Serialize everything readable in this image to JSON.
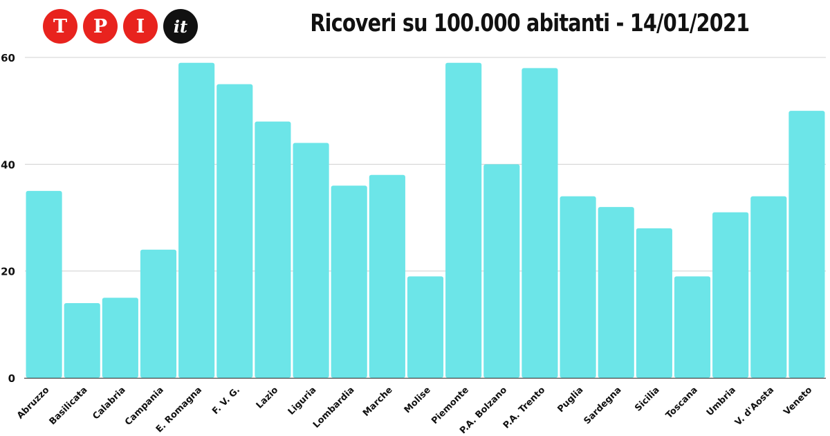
{
  "logo": {
    "letters": [
      "T",
      "P",
      "I"
    ],
    "suffix": "it",
    "letter_color": "#e8231e",
    "suffix_color": "#111111"
  },
  "chart_data": {
    "type": "bar",
    "title": "Ricoveri su 100.000 abitanti - 14/01/2021",
    "xlabel": "",
    "ylabel": "",
    "categories": [
      "Abruzzo",
      "Basilicata",
      "Calabria",
      "Campania",
      "E. Romagna",
      "F. V. G.",
      "Lazio",
      "Liguria",
      "Lombardia",
      "Marche",
      "Molise",
      "Piemonte",
      "P.A. Bolzano",
      "P.A. Trento",
      "Puglia",
      "Sardegna",
      "Sicilia",
      "Toscana",
      "Umbria",
      "V. d'Aosta",
      "Veneto"
    ],
    "values": [
      35,
      14,
      15,
      24,
      59,
      55,
      48,
      44,
      36,
      38,
      19,
      59,
      40,
      58,
      34,
      32,
      28,
      19,
      31,
      34,
      50
    ],
    "ylim": [
      0,
      60
    ],
    "yticks": [
      0,
      20,
      40,
      60
    ],
    "grid": true,
    "legend": "none",
    "bar_color": "#6ce5e8",
    "grid_color": "#d0d0d0",
    "axis_color": "#444444"
  }
}
